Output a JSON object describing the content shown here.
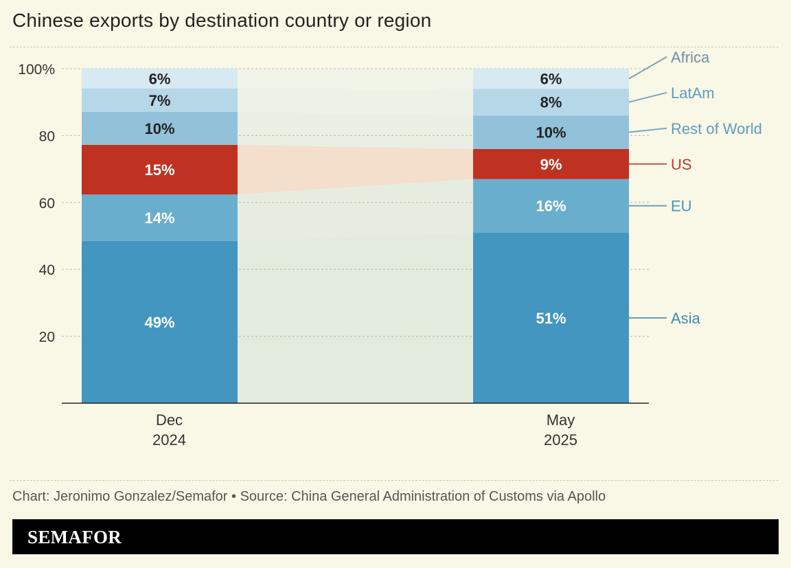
{
  "chart_data": {
    "type": "bar",
    "title": "Chinese exports by destination country or region",
    "ylim": [
      0,
      100
    ],
    "y_ticks": [
      {
        "value": 100,
        "label": "100%"
      },
      {
        "value": 80,
        "label": "80"
      },
      {
        "value": 60,
        "label": "60"
      },
      {
        "value": 40,
        "label": "40"
      },
      {
        "value": 20,
        "label": "20"
      }
    ],
    "categories": [
      {
        "line1": "Dec",
        "line2": "2024"
      },
      {
        "line1": "May",
        "line2": "2025"
      }
    ],
    "series": [
      {
        "key": "asia",
        "name": "Asia",
        "color": "#4396c0",
        "label_color": "#3f8cb8",
        "text_color": "#ffffff",
        "flow_color": "#e3ebde",
        "values": [
          49,
          51
        ],
        "labels": [
          "49%",
          "51%"
        ]
      },
      {
        "key": "eu",
        "name": "EU",
        "color": "#6aaece",
        "label_color": "#4f94ba",
        "text_color": "#ffffff",
        "flow_color": "#e6ede0",
        "values": [
          14,
          16
        ],
        "labels": [
          "14%",
          "16%"
        ]
      },
      {
        "key": "us",
        "name": "US",
        "color": "#bf3222",
        "label_color": "#c0392b",
        "text_color": "#ffffff",
        "flow_color": "#f3dfcb",
        "values": [
          15,
          9
        ],
        "labels": [
          "15%",
          "9%"
        ]
      },
      {
        "key": "rest",
        "name": "Rest of World",
        "color": "#91c2da",
        "label_color": "#5d9cbd",
        "text_color": "#222222",
        "flow_color": "#e9efe3",
        "values": [
          10,
          10
        ],
        "labels": [
          "10%",
          "10%"
        ]
      },
      {
        "key": "latam",
        "name": "LatAm",
        "color": "#b5d7e8",
        "label_color": "#5d9cbd",
        "text_color": "#222222",
        "flow_color": "#edf2e6",
        "values": [
          7,
          8
        ],
        "labels": [
          "7%",
          "8%"
        ]
      },
      {
        "key": "africa",
        "name": "Africa",
        "color": "#d7e9f3",
        "label_color": "#6f8fa8",
        "text_color": "#222222",
        "flow_color": "#f1f4e9",
        "values": [
          6,
          6
        ],
        "labels": [
          "6%",
          "6%"
        ]
      }
    ]
  },
  "source": "Chart: Jeronimo Gonzalez/Semafor • Source: China General Administration of Customs via Apollo",
  "brand": "SEMAFOR"
}
